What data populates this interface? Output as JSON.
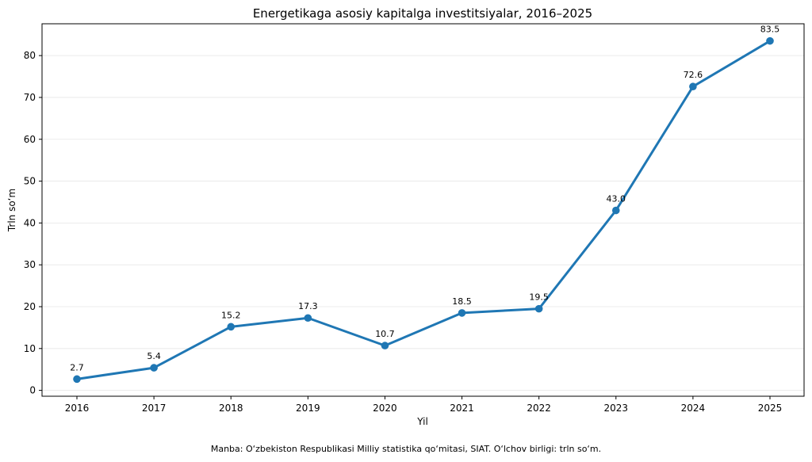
{
  "chart_data": {
    "type": "line",
    "title": "Energetikaga asosiy kapitalga investitsiyalar, 2016–2025",
    "xlabel": "Yil",
    "ylabel": "Trln so‘m",
    "categories": [
      "2016",
      "2017",
      "2018",
      "2019",
      "2020",
      "2021",
      "2022",
      "2023",
      "2024",
      "2025"
    ],
    "series": [
      {
        "values": [
          2.7,
          5.4,
          15.2,
          17.3,
          10.7,
          18.5,
          19.5,
          43.0,
          72.6,
          83.5
        ]
      }
    ],
    "data_labels": [
      "2.7",
      "5.4",
      "15.2",
      "17.3",
      "10.7",
      "18.5",
      "19.5",
      "43.0",
      "72.6",
      "83.5"
    ],
    "yticks": [
      0,
      10,
      20,
      30,
      40,
      50,
      60,
      70,
      80
    ],
    "ylim": [
      -1.4,
      87.6
    ],
    "grid": "horizontal",
    "line_color": "#1f77b4"
  },
  "footer": {
    "source": "Manba: O‘zbekiston Respublikasi Milliy statistika qo‘mitasi, SIAT. O‘lchov birligi: trln so‘m."
  }
}
